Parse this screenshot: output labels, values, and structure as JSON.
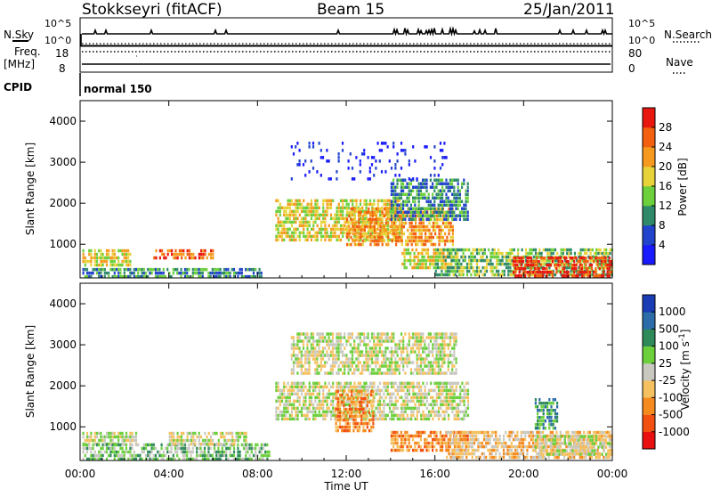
{
  "header": {
    "station": "Stokkseyri (fitACF)",
    "beam": "Beam 15",
    "date": "25/Jan/2011"
  },
  "top_panels": {
    "nsky_label": "N.Sky",
    "nsearch_label": "N.Search",
    "nsky_ticks": [
      "10^5",
      "10^0"
    ],
    "nsearch_ticks": [
      "10^5",
      "10^0"
    ],
    "freq_label_line1": "Freq.",
    "freq_label_line2": "[MHz]",
    "freq_ticks": [
      "18",
      "8"
    ],
    "nave_label": "Nave",
    "nave_ticks": [
      "80",
      "0"
    ],
    "cpid_label": "CPID",
    "cpid_value": "normal 150"
  },
  "x_axis": {
    "title": "Time UT",
    "ticks": [
      "00:00",
      "04:00",
      "08:00",
      "12:00",
      "16:00",
      "20:00",
      "00:00"
    ],
    "range_hours": [
      0,
      24
    ]
  },
  "chart_data": [
    {
      "type": "heatmap",
      "name": "power",
      "ylabel": "Slant Range [km]",
      "yticks": [
        "1000",
        "2000",
        "3000",
        "4000"
      ],
      "ylim": [
        180,
        4500
      ],
      "xlim_hours": [
        0,
        24
      ],
      "colorbar_label": "Power [dB]",
      "colorbar_ticks": [
        "4",
        "8",
        "12",
        "16",
        "20",
        "24",
        "28"
      ],
      "colorbar_colors": [
        "#1a1aff",
        "#2244cc",
        "#2f8a6a",
        "#6ccf3c",
        "#e8d23a",
        "#f59a1e",
        "#f26010",
        "#e81810"
      ],
      "regions": [
        {
          "t": [
            0.1,
            2.3
          ],
          "r": [
            500,
            880
          ],
          "level": 4
        },
        {
          "t": [
            3.3,
            6.0
          ],
          "r": [
            650,
            880
          ],
          "level": 6
        },
        {
          "t": [
            0.1,
            8.2
          ],
          "r": [
            220,
            420
          ],
          "level": 2
        },
        {
          "t": [
            8.8,
            14.5
          ],
          "r": [
            1100,
            2100
          ],
          "level": 4
        },
        {
          "t": [
            12.0,
            16.8
          ],
          "r": [
            1000,
            1900
          ],
          "level": 5
        },
        {
          "t": [
            14.0,
            17.5
          ],
          "r": [
            1600,
            2600
          ],
          "level": 2
        },
        {
          "t": [
            14.5,
            17.0
          ],
          "r": [
            450,
            900
          ],
          "level": 4
        },
        {
          "t": [
            16.0,
            24.0
          ],
          "r": [
            250,
            900
          ],
          "level": 3
        },
        {
          "t": [
            19.5,
            24.0
          ],
          "r": [
            250,
            700
          ],
          "level": 7
        },
        {
          "t": [
            9.5,
            16.5
          ],
          "r": [
            2600,
            3500
          ],
          "level": 0
        }
      ]
    },
    {
      "type": "heatmap",
      "name": "velocity",
      "ylabel": "Slant Range [km]",
      "yticks": [
        "1000",
        "2000",
        "3000",
        "4000"
      ],
      "ylim": [
        180,
        4500
      ],
      "xlim_hours": [
        0,
        24
      ],
      "colorbar_label": "Velocity [m s^-1]",
      "colorbar_ticks": [
        "1000",
        "500",
        "100",
        "25",
        "-25",
        "-100",
        "-500",
        "-1000"
      ],
      "colorbar_colors": [
        "#1a3cb4",
        "#2c6ca8",
        "#2f8a5a",
        "#6ccf3c",
        "#c8c8c0",
        "#f5c060",
        "#f58a1e",
        "#f25010",
        "#e81010"
      ],
      "regions": [
        {
          "t": [
            0.1,
            2.5
          ],
          "r": [
            550,
            880
          ],
          "level": 4
        },
        {
          "t": [
            0.1,
            8.5
          ],
          "r": [
            220,
            600
          ],
          "level": 3
        },
        {
          "t": [
            4.0,
            7.5
          ],
          "r": [
            600,
            880
          ],
          "level": 4
        },
        {
          "t": [
            8.8,
            17.5
          ],
          "r": [
            1200,
            2100
          ],
          "level": 4
        },
        {
          "t": [
            11.5,
            13.2
          ],
          "r": [
            900,
            1900
          ],
          "level": 6
        },
        {
          "t": [
            14.0,
            17.5
          ],
          "r": [
            450,
            900
          ],
          "level": 6
        },
        {
          "t": [
            16.5,
            24.0
          ],
          "r": [
            250,
            900
          ],
          "level": 5
        },
        {
          "t": [
            20.5,
            24.0
          ],
          "r": [
            300,
            800
          ],
          "level": 4
        },
        {
          "t": [
            20.5,
            21.5
          ],
          "r": [
            1000,
            1700
          ],
          "level": 2
        },
        {
          "t": [
            9.5,
            17.0
          ],
          "r": [
            2300,
            3300
          ],
          "level": 4
        }
      ]
    }
  ]
}
